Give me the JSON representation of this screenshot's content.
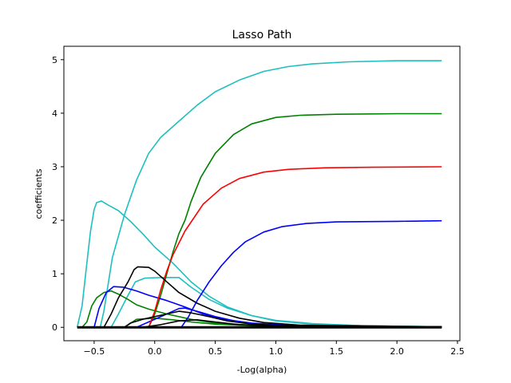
{
  "chart_data": {
    "type": "line",
    "title": "Lasso Path",
    "xlabel": "-Log(alpha)",
    "ylabel": "coefficients",
    "xlim": [
      -0.75,
      2.52
    ],
    "ylim": [
      -0.25,
      5.25
    ],
    "xticks": [
      -0.5,
      0.0,
      0.5,
      1.0,
      1.5,
      2.0,
      2.5
    ],
    "xtick_labels": [
      "−0.5",
      "0.0",
      "0.5",
      "1.0",
      "1.5",
      "2.0",
      "2.5"
    ],
    "yticks": [
      0,
      1,
      2,
      3,
      4,
      5
    ],
    "ytick_labels": [
      "0",
      "1",
      "2",
      "3",
      "4",
      "5"
    ],
    "grid": false,
    "series": [
      {
        "color": "#1fbfbf",
        "points": [
          [
            -0.64,
            0
          ],
          [
            -0.6,
            0.4
          ],
          [
            -0.56,
            1.2
          ],
          [
            -0.53,
            1.8
          ],
          [
            -0.5,
            2.2
          ],
          [
            -0.48,
            2.33
          ],
          [
            -0.44,
            2.36
          ],
          [
            -0.38,
            2.28
          ],
          [
            -0.3,
            2.18
          ],
          [
            -0.2,
            1.98
          ],
          [
            -0.1,
            1.75
          ],
          [
            0.0,
            1.5
          ],
          [
            0.15,
            1.2
          ],
          [
            0.3,
            0.85
          ],
          [
            0.45,
            0.58
          ],
          [
            0.6,
            0.38
          ],
          [
            0.8,
            0.22
          ],
          [
            1.0,
            0.12
          ],
          [
            1.3,
            0.06
          ],
          [
            1.7,
            0.03
          ],
          [
            2.37,
            0.01
          ]
        ]
      },
      {
        "color": "#1fbfbf",
        "points": [
          [
            -0.45,
            0
          ],
          [
            -0.42,
            0.3
          ],
          [
            -0.35,
            1.3
          ],
          [
            -0.25,
            2.1
          ],
          [
            -0.15,
            2.75
          ],
          [
            -0.05,
            3.25
          ],
          [
            0.05,
            3.55
          ],
          [
            0.2,
            3.85
          ],
          [
            0.35,
            4.15
          ],
          [
            0.5,
            4.4
          ],
          [
            0.7,
            4.62
          ],
          [
            0.9,
            4.78
          ],
          [
            1.1,
            4.87
          ],
          [
            1.3,
            4.92
          ],
          [
            1.6,
            4.96
          ],
          [
            2.0,
            4.98
          ],
          [
            2.37,
            4.98
          ]
        ]
      },
      {
        "color": "#1fbfbf",
        "points": [
          [
            -0.36,
            0
          ],
          [
            -0.3,
            0.25
          ],
          [
            -0.22,
            0.6
          ],
          [
            -0.16,
            0.85
          ],
          [
            -0.08,
            0.92
          ],
          [
            0.05,
            0.93
          ],
          [
            0.2,
            0.93
          ],
          [
            0.3,
            0.75
          ],
          [
            0.45,
            0.52
          ],
          [
            0.6,
            0.36
          ],
          [
            0.8,
            0.22
          ],
          [
            1.0,
            0.13
          ],
          [
            1.3,
            0.07
          ],
          [
            1.7,
            0.03
          ],
          [
            2.37,
            0.01
          ]
        ]
      },
      {
        "color": "#008000",
        "points": [
          [
            -0.6,
            0
          ],
          [
            -0.56,
            0.1
          ],
          [
            -0.52,
            0.4
          ],
          [
            -0.48,
            0.55
          ],
          [
            -0.42,
            0.65
          ],
          [
            -0.36,
            0.68
          ],
          [
            -0.3,
            0.62
          ],
          [
            -0.22,
            0.52
          ],
          [
            -0.15,
            0.42
          ],
          [
            -0.05,
            0.34
          ],
          [
            0.1,
            0.25
          ],
          [
            0.3,
            0.15
          ],
          [
            0.5,
            0.08
          ],
          [
            0.8,
            0.04
          ],
          [
            1.2,
            0.02
          ],
          [
            2.37,
            0.01
          ]
        ]
      },
      {
        "color": "#008000",
        "points": [
          [
            -0.25,
            0
          ],
          [
            -0.15,
            0.15
          ],
          [
            0.0,
            0.17
          ],
          [
            0.15,
            0.14
          ],
          [
            0.3,
            0.1
          ],
          [
            0.5,
            0.06
          ],
          [
            0.8,
            0.03
          ],
          [
            1.2,
            0.01
          ],
          [
            2.37,
            0.0
          ]
        ]
      },
      {
        "color": "#008000",
        "points": [
          [
            -0.05,
            0
          ],
          [
            0.0,
            0.25
          ],
          [
            0.05,
            0.6
          ],
          [
            0.1,
            1.0
          ],
          [
            0.15,
            1.4
          ],
          [
            0.2,
            1.75
          ],
          [
            0.25,
            2.0
          ],
          [
            0.3,
            2.35
          ],
          [
            0.38,
            2.8
          ],
          [
            0.5,
            3.25
          ],
          [
            0.65,
            3.6
          ],
          [
            0.8,
            3.8
          ],
          [
            1.0,
            3.92
          ],
          [
            1.2,
            3.96
          ],
          [
            1.5,
            3.98
          ],
          [
            2.0,
            3.99
          ],
          [
            2.37,
            3.99
          ]
        ]
      },
      {
        "color": "#0000ff",
        "points": [
          [
            -0.5,
            0
          ],
          [
            -0.46,
            0.35
          ],
          [
            -0.4,
            0.65
          ],
          [
            -0.34,
            0.76
          ],
          [
            -0.26,
            0.75
          ],
          [
            -0.15,
            0.68
          ],
          [
            -0.05,
            0.6
          ],
          [
            0.1,
            0.5
          ],
          [
            0.25,
            0.38
          ],
          [
            0.4,
            0.25
          ],
          [
            0.6,
            0.14
          ],
          [
            0.8,
            0.08
          ],
          [
            1.1,
            0.04
          ],
          [
            1.5,
            0.02
          ],
          [
            2.37,
            0.01
          ]
        ]
      },
      {
        "color": "#0000ff",
        "points": [
          [
            -0.15,
            0
          ],
          [
            -0.05,
            0.1
          ],
          [
            0.1,
            0.25
          ],
          [
            0.2,
            0.35
          ],
          [
            0.25,
            0.36
          ],
          [
            0.35,
            0.3
          ],
          [
            0.5,
            0.2
          ],
          [
            0.7,
            0.1
          ],
          [
            0.9,
            0.05
          ],
          [
            1.2,
            0.02
          ],
          [
            2.37,
            0.01
          ]
        ]
      },
      {
        "color": "#0000ff",
        "points": [
          [
            0.22,
            0
          ],
          [
            0.28,
            0.2
          ],
          [
            0.35,
            0.5
          ],
          [
            0.45,
            0.85
          ],
          [
            0.55,
            1.15
          ],
          [
            0.65,
            1.4
          ],
          [
            0.75,
            1.6
          ],
          [
            0.9,
            1.78
          ],
          [
            1.05,
            1.88
          ],
          [
            1.25,
            1.94
          ],
          [
            1.5,
            1.97
          ],
          [
            2.0,
            1.98
          ],
          [
            2.37,
            1.99
          ]
        ]
      },
      {
        "color": "#ff0000",
        "points": [
          [
            -0.05,
            0
          ],
          [
            0.0,
            0.3
          ],
          [
            0.05,
            0.7
          ],
          [
            0.1,
            1.05
          ],
          [
            0.15,
            1.35
          ],
          [
            0.25,
            1.8
          ],
          [
            0.4,
            2.3
          ],
          [
            0.55,
            2.6
          ],
          [
            0.7,
            2.78
          ],
          [
            0.9,
            2.9
          ],
          [
            1.1,
            2.95
          ],
          [
            1.4,
            2.98
          ],
          [
            1.8,
            2.99
          ],
          [
            2.37,
            3.0
          ]
        ]
      },
      {
        "color": "#000000",
        "points": [
          [
            -0.42,
            0
          ],
          [
            -0.36,
            0.25
          ],
          [
            -0.3,
            0.55
          ],
          [
            -0.22,
            0.85
          ],
          [
            -0.17,
            1.08
          ],
          [
            -0.14,
            1.13
          ],
          [
            -0.05,
            1.12
          ],
          [
            0.0,
            1.05
          ],
          [
            0.1,
            0.85
          ],
          [
            0.2,
            0.65
          ],
          [
            0.35,
            0.45
          ],
          [
            0.5,
            0.3
          ],
          [
            0.7,
            0.17
          ],
          [
            0.9,
            0.09
          ],
          [
            1.2,
            0.04
          ],
          [
            2.37,
            0.01
          ]
        ]
      },
      {
        "color": "#000000",
        "points": [
          [
            -0.25,
            0
          ],
          [
            -0.2,
            0.08
          ],
          [
            -0.1,
            0.15
          ],
          [
            0.0,
            0.2
          ],
          [
            0.1,
            0.25
          ],
          [
            0.2,
            0.3
          ],
          [
            0.3,
            0.27
          ],
          [
            0.45,
            0.2
          ],
          [
            0.6,
            0.12
          ],
          [
            0.8,
            0.06
          ],
          [
            1.1,
            0.03
          ],
          [
            2.37,
            0.01
          ]
        ]
      },
      {
        "color": "#000000",
        "points": [
          [
            -0.1,
            0
          ],
          [
            0.05,
            0.05
          ],
          [
            0.2,
            0.12
          ],
          [
            0.35,
            0.14
          ],
          [
            0.5,
            0.1
          ],
          [
            0.7,
            0.05
          ],
          [
            1.0,
            0.02
          ],
          [
            2.37,
            0.0
          ]
        ]
      },
      {
        "color": "#000000",
        "points": [
          [
            -0.64,
            0.0
          ],
          [
            2.37,
            0.0
          ]
        ],
        "bold": true
      }
    ]
  }
}
